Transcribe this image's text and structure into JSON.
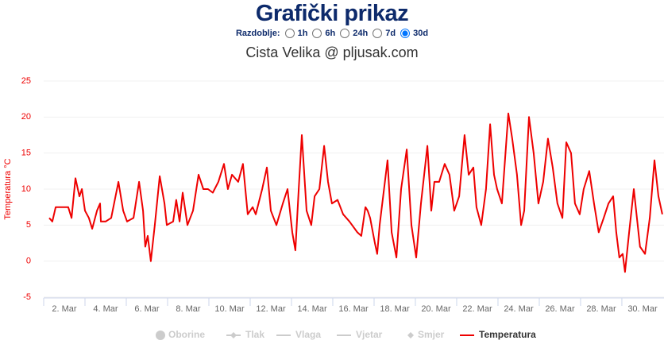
{
  "header": {
    "title": "Grafički prikaz",
    "period_label": "Razdoblje:",
    "periods": [
      "1h",
      "6h",
      "24h",
      "7d",
      "30d"
    ],
    "selected": 4
  },
  "chart_data": {
    "type": "line",
    "title": "Cista Velika @ pljusak.com",
    "y_label": "Temperatura °C",
    "x": [
      1.27,
      1.42,
      1.58,
      1.88,
      2.19,
      2.35,
      2.54,
      2.73,
      2.85,
      3.0,
      3.19,
      3.35,
      3.58,
      3.73,
      3.77,
      4.0,
      4.27,
      4.62,
      4.85,
      5.04,
      5.35,
      5.62,
      5.81,
      5.92,
      6.04,
      6.19,
      6.38,
      6.62,
      6.85,
      6.96,
      7.27,
      7.42,
      7.58,
      7.73,
      7.96,
      8.23,
      8.5,
      8.73,
      8.96,
      9.19,
      9.46,
      9.73,
      9.92,
      10.12,
      10.42,
      10.65,
      10.88,
      11.12,
      11.27,
      11.58,
      11.81,
      12.0,
      12.27,
      12.58,
      12.81,
      13.04,
      13.19,
      13.35,
      13.5,
      13.73,
      13.96,
      14.12,
      14.35,
      14.58,
      14.77,
      14.96,
      15.23,
      15.5,
      15.81,
      16.19,
      16.38,
      16.58,
      16.69,
      16.81,
      17.04,
      17.15,
      17.27,
      17.65,
      17.85,
      18.08,
      18.31,
      18.58,
      18.81,
      19.04,
      19.27,
      19.58,
      19.77,
      19.92,
      20.15,
      20.42,
      20.65,
      20.88,
      21.12,
      21.38,
      21.58,
      21.81,
      21.96,
      22.19,
      22.42,
      22.62,
      22.81,
      22.96,
      23.19,
      23.5,
      23.69,
      23.92,
      24.12,
      24.27,
      24.5,
      24.73,
      24.96,
      25.19,
      25.42,
      25.65,
      25.88,
      26.12,
      26.31,
      26.54,
      26.73,
      26.96,
      27.15,
      27.42,
      27.65,
      27.88,
      28.12,
      28.35,
      28.58,
      28.73,
      28.88,
      29.04,
      29.15,
      29.35,
      29.58,
      29.73,
      29.88,
      30.12,
      30.35,
      30.58,
      30.77,
      30.96
    ],
    "series": [
      {
        "name": "Oborine",
        "visible": false,
        "symbol": "circle"
      },
      {
        "name": "Tlak",
        "visible": false,
        "symbol": "line-diamond"
      },
      {
        "name": "Vlaga",
        "visible": false,
        "symbol": "line"
      },
      {
        "name": "Vjetar",
        "visible": false,
        "symbol": "line"
      },
      {
        "name": "Smjer",
        "visible": false,
        "symbol": "diamond"
      },
      {
        "name": "Temperatura",
        "visible": true,
        "symbol": "line",
        "color": "#ee0000",
        "values": [
          6,
          5.5,
          7.5,
          7.5,
          7.5,
          6,
          11.5,
          9,
          10,
          7,
          6,
          4.5,
          7,
          8,
          5.5,
          5.5,
          6,
          11,
          7,
          5.5,
          6,
          11,
          7,
          2,
          3.5,
          0,
          5,
          11.8,
          8,
          5,
          5.5,
          8.5,
          5.5,
          9.5,
          5,
          7,
          12,
          10,
          10,
          9.5,
          11,
          13.5,
          10,
          12,
          11,
          13.5,
          6.5,
          7.5,
          6.5,
          10,
          13,
          7,
          5,
          8,
          10,
          4,
          1.5,
          10,
          17.5,
          7,
          5,
          9,
          10,
          16,
          11,
          8,
          8.5,
          6.5,
          5.5,
          4,
          3.5,
          7.5,
          7,
          6,
          2.5,
          1,
          5,
          14,
          4,
          0.5,
          10,
          15.5,
          5,
          0.5,
          8,
          16,
          7,
          11,
          11,
          13.5,
          12,
          7,
          9,
          17.5,
          12,
          13,
          7.5,
          5,
          10,
          19,
          12,
          10,
          8,
          20.5,
          17,
          12,
          5,
          7,
          20,
          15,
          8,
          11,
          17,
          13,
          8,
          6,
          16.5,
          15,
          8,
          6.5,
          10,
          12.5,
          8,
          4,
          6,
          8,
          9,
          4,
          0.5,
          1,
          -1.5,
          4,
          10,
          6,
          2,
          1,
          6,
          14,
          9,
          6.5
        ]
      }
    ],
    "xlim": [
      1,
      31.04
    ],
    "xticks": [
      {
        "value": 2,
        "label": "2. Mar"
      },
      {
        "value": 4,
        "label": "4. Mar"
      },
      {
        "value": 6,
        "label": "6. Mar"
      },
      {
        "value": 8,
        "label": "8. Mar"
      },
      {
        "value": 10,
        "label": "10. Mar"
      },
      {
        "value": 12,
        "label": "12. Mar"
      },
      {
        "value": 14,
        "label": "14. Mar"
      },
      {
        "value": 16,
        "label": "16. Mar"
      },
      {
        "value": 18,
        "label": "18. Mar"
      },
      {
        "value": 20,
        "label": "20. Mar"
      },
      {
        "value": 22,
        "label": "22. Mar"
      },
      {
        "value": 24,
        "label": "24. Mar"
      },
      {
        "value": 26,
        "label": "26. Mar"
      },
      {
        "value": 28,
        "label": "28. Mar"
      },
      {
        "value": 30,
        "label": "30. Mar"
      }
    ],
    "ylim": [
      -5,
      25
    ],
    "yticks": [
      -5,
      0,
      5,
      10,
      15,
      20,
      25
    ],
    "grid": true
  }
}
